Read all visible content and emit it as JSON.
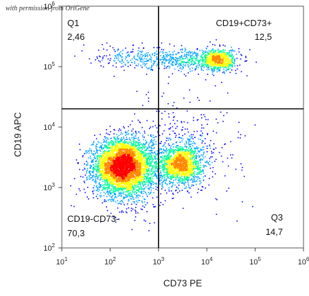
{
  "watermark": "with permission from OriGene",
  "chart_data": {
    "type": "scatter",
    "subtype": "flow cytometry density dot plot",
    "xlabel": "CD73 PE",
    "ylabel": "CD19 APC",
    "x_scale": "log",
    "y_scale": "log",
    "xlim": [
      10,
      1000000
    ],
    "ylim": [
      100,
      1000000
    ],
    "x_ticks": [
      {
        "value": 10,
        "base": "10",
        "exp": "1"
      },
      {
        "value": 100,
        "base": "10",
        "exp": "2"
      },
      {
        "value": 1000,
        "base": "10",
        "exp": "3"
      },
      {
        "value": 10000,
        "base": "10",
        "exp": "4"
      },
      {
        "value": 100000,
        "base": "10",
        "exp": "5"
      },
      {
        "value": 1000000,
        "base": "10",
        "exp": "6"
      }
    ],
    "y_ticks": [
      {
        "value": 100,
        "base": "10",
        "exp": "2"
      },
      {
        "value": 1000,
        "base": "10",
        "exp": "3"
      },
      {
        "value": 10000,
        "base": "10",
        "exp": "4"
      },
      {
        "value": 100000,
        "base": "10",
        "exp": "5"
      },
      {
        "value": 1000000,
        "base": "10",
        "exp": "6"
      }
    ],
    "gates": {
      "x_divider": 1000,
      "y_divider": 20000
    },
    "quadrants": [
      {
        "id": "q1",
        "name": "Q1",
        "percent": "2,46",
        "corner": "top-left"
      },
      {
        "id": "q2",
        "name": "CD19+CD73+",
        "percent": "12,5",
        "corner": "top-right"
      },
      {
        "id": "q4",
        "name": "CD19-CD73-",
        "percent": "70,3",
        "corner": "bottom-left"
      },
      {
        "id": "q3",
        "name": "Q3",
        "percent": "14,7",
        "corner": "bottom-right"
      }
    ],
    "populations": [
      {
        "center": [
          180,
          2300
        ],
        "spread": [
          0.3,
          0.22
        ],
        "count": 4200
      },
      {
        "center": [
          2800,
          2500
        ],
        "spread": [
          0.22,
          0.16
        ],
        "count": 1500
      },
      {
        "center": [
          18000,
          130000
        ],
        "spread": [
          0.17,
          0.09
        ],
        "count": 650
      },
      {
        "center": [
          4000,
          130000
        ],
        "spread": [
          0.45,
          0.09
        ],
        "count": 500
      },
      {
        "center": [
          250,
          150000
        ],
        "spread": [
          0.35,
          0.1
        ],
        "count": 180
      },
      {
        "center": [
          3000,
          5000
        ],
        "spread": [
          0.6,
          0.4
        ],
        "count": 400
      },
      {
        "center": [
          300,
          1500
        ],
        "spread": [
          0.4,
          0.3
        ],
        "count": 500
      }
    ],
    "density_colors": [
      "#0000ff",
      "#00a2ff",
      "#00ff99",
      "#ffff00",
      "#ff8800",
      "#ff0000"
    ],
    "grid": false,
    "legend": "none"
  }
}
